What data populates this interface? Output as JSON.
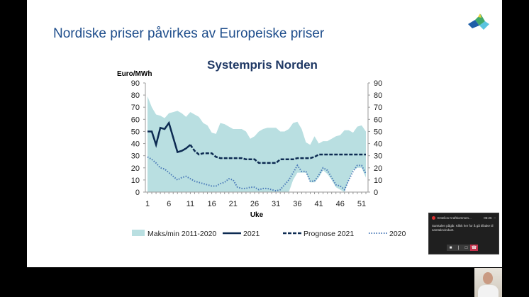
{
  "slide": {
    "title": "Nordiske priser påvirkes av Europeiske priser"
  },
  "call_popup": {
    "meeting_name": "Entelios Kraftkommen...",
    "time": "05:26",
    "message": "Samtalen pågår. Klikk her for å gå tilbake til samtalevinduet.",
    "minimize": "–"
  },
  "chart_data": {
    "type": "line",
    "title": "Systempris Norden",
    "ylabel": "Euro/MWh",
    "xlabel": "Uke",
    "ylim": [
      0,
      90
    ],
    "yticks": [
      0,
      10,
      20,
      30,
      40,
      50,
      60,
      70,
      80,
      90
    ],
    "xticks": [
      1,
      6,
      11,
      16,
      21,
      26,
      31,
      36,
      41,
      46,
      51
    ],
    "xlim": [
      1,
      52
    ],
    "grid": false,
    "legend_position": "bottom",
    "band": {
      "name": "Maks/min 2011-2020",
      "color": "#b9dfe1",
      "max": [
        79,
        70,
        64,
        63,
        61,
        65,
        66,
        67,
        65,
        62,
        66,
        64,
        62,
        57,
        55,
        49,
        48,
        57,
        56,
        54,
        52,
        52,
        52,
        50,
        44,
        46,
        50,
        52,
        53,
        53,
        53,
        50,
        50,
        52,
        57,
        58,
        52,
        41,
        39,
        46,
        40,
        42,
        42,
        44,
        46,
        47,
        51,
        51,
        49,
        54,
        55,
        50
      ],
      "min": [
        0,
        0,
        0,
        0,
        0,
        0,
        0,
        0,
        0,
        0,
        0,
        0,
        0,
        0,
        0,
        0,
        0,
        0,
        0,
        0,
        0,
        0,
        0,
        0,
        0,
        0,
        0,
        0,
        0,
        0,
        0,
        0,
        0,
        0,
        10,
        16,
        16,
        16,
        8,
        8,
        12,
        18,
        15,
        10,
        4,
        2,
        0,
        10,
        18,
        20,
        20,
        12
      ]
    },
    "series": [
      {
        "name": "2021",
        "color": "#0d2b52",
        "style": "solid",
        "x": [
          1,
          2,
          3,
          4,
          5,
          6,
          7,
          8,
          9,
          10,
          11
        ],
        "values": [
          50,
          50,
          39,
          53,
          52,
          57,
          45,
          33,
          34,
          36,
          39
        ]
      },
      {
        "name": "Prognose 2021",
        "color": "#0d2b52",
        "style": "dashed",
        "x": [
          11,
          12,
          13,
          14,
          15,
          16,
          17,
          18,
          19,
          20,
          21,
          22,
          23,
          24,
          25,
          26,
          27,
          28,
          29,
          30,
          31,
          32,
          33,
          34,
          35,
          36,
          37,
          38,
          39,
          40,
          41,
          42,
          43,
          44,
          45,
          46,
          47,
          48,
          49,
          50,
          51,
          52
        ],
        "values": [
          39,
          34,
          31,
          32,
          32,
          32,
          29,
          28,
          28,
          28,
          28,
          28,
          28,
          27,
          27,
          27,
          24,
          24,
          24,
          24,
          24,
          27,
          27,
          27,
          27,
          28,
          28,
          28,
          28,
          29,
          31,
          31,
          31,
          31,
          31,
          31,
          31,
          31,
          31,
          31,
          31,
          31
        ]
      },
      {
        "name": "2020",
        "color": "#4a7ab8",
        "style": "dotted",
        "x": [
          1,
          2,
          3,
          4,
          5,
          6,
          7,
          8,
          9,
          10,
          11,
          12,
          13,
          14,
          15,
          16,
          17,
          18,
          19,
          20,
          21,
          22,
          23,
          24,
          25,
          26,
          27,
          28,
          29,
          30,
          31,
          32,
          33,
          34,
          35,
          36,
          37,
          38,
          39,
          40,
          41,
          42,
          43,
          44,
          45,
          46,
          47,
          48,
          49,
          50,
          51,
          52
        ],
        "values": [
          29,
          27,
          24,
          20,
          19,
          16,
          13,
          10,
          12,
          13,
          11,
          9,
          8,
          7,
          6,
          5,
          5,
          7,
          8,
          11,
          10,
          4,
          3,
          3,
          4,
          4,
          2,
          3,
          3,
          2,
          1,
          2,
          6,
          10,
          16,
          22,
          17,
          17,
          9,
          9,
          14,
          20,
          18,
          12,
          6,
          5,
          2,
          10,
          17,
          22,
          22,
          15
        ]
      }
    ]
  }
}
